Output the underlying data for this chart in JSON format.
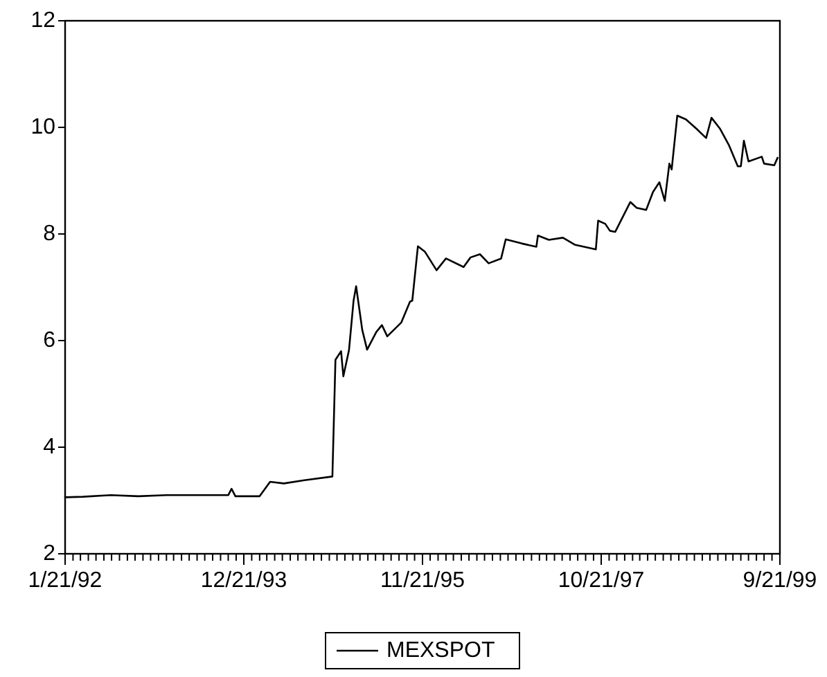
{
  "chart_data": {
    "type": "line",
    "xlim": [
      "1992-01-21",
      "1999-09-21"
    ],
    "ylim": [
      2,
      12
    ],
    "yticks": [
      2,
      4,
      6,
      8,
      10,
      12
    ],
    "grid": false,
    "legend": "bottom",
    "marker": "none",
    "line_style": "solid",
    "xticks": [
      {
        "value": "1992-01-21",
        "label": "1/21/92"
      },
      {
        "value": "1992-02-21",
        "label": null
      },
      {
        "value": "1992-03-21",
        "label": null
      },
      {
        "value": "1992-04-21",
        "label": null
      },
      {
        "value": "1992-05-21",
        "label": null
      },
      {
        "value": "1992-06-21",
        "label": null
      },
      {
        "value": "1992-07-21",
        "label": null
      },
      {
        "value": "1992-08-21",
        "label": null
      },
      {
        "value": "1992-09-21",
        "label": null
      },
      {
        "value": "1992-10-21",
        "label": null
      },
      {
        "value": "1992-11-21",
        "label": null
      },
      {
        "value": "1992-12-21",
        "label": null
      },
      {
        "value": "1993-01-21",
        "label": null
      },
      {
        "value": "1993-02-21",
        "label": null
      },
      {
        "value": "1993-03-21",
        "label": null
      },
      {
        "value": "1993-04-21",
        "label": null
      },
      {
        "value": "1993-05-21",
        "label": null
      },
      {
        "value": "1993-06-21",
        "label": null
      },
      {
        "value": "1993-07-21",
        "label": null
      },
      {
        "value": "1993-08-21",
        "label": null
      },
      {
        "value": "1993-09-21",
        "label": null
      },
      {
        "value": "1993-10-21",
        "label": null
      },
      {
        "value": "1993-11-21",
        "label": null
      },
      {
        "value": "1993-12-21",
        "label": "12/21/93"
      },
      {
        "value": "1994-01-21",
        "label": null
      },
      {
        "value": "1994-02-21",
        "label": null
      },
      {
        "value": "1994-03-21",
        "label": null
      },
      {
        "value": "1994-04-21",
        "label": null
      },
      {
        "value": "1994-05-21",
        "label": null
      },
      {
        "value": "1994-06-21",
        "label": null
      },
      {
        "value": "1994-07-21",
        "label": null
      },
      {
        "value": "1994-08-21",
        "label": null
      },
      {
        "value": "1994-09-21",
        "label": null
      },
      {
        "value": "1994-10-21",
        "label": null
      },
      {
        "value": "1994-11-21",
        "label": null
      },
      {
        "value": "1994-12-21",
        "label": null
      },
      {
        "value": "1995-01-21",
        "label": null
      },
      {
        "value": "1995-02-21",
        "label": null
      },
      {
        "value": "1995-03-21",
        "label": null
      },
      {
        "value": "1995-04-21",
        "label": null
      },
      {
        "value": "1995-05-21",
        "label": null
      },
      {
        "value": "1995-06-21",
        "label": null
      },
      {
        "value": "1995-07-21",
        "label": null
      },
      {
        "value": "1995-08-21",
        "label": null
      },
      {
        "value": "1995-09-21",
        "label": null
      },
      {
        "value": "1995-10-21",
        "label": null
      },
      {
        "value": "1995-11-21",
        "label": "11/21/95"
      },
      {
        "value": "1995-12-21",
        "label": null
      },
      {
        "value": "1996-01-21",
        "label": null
      },
      {
        "value": "1996-02-21",
        "label": null
      },
      {
        "value": "1996-03-21",
        "label": null
      },
      {
        "value": "1996-04-21",
        "label": null
      },
      {
        "value": "1996-05-21",
        "label": null
      },
      {
        "value": "1996-06-21",
        "label": null
      },
      {
        "value": "1996-07-21",
        "label": null
      },
      {
        "value": "1996-08-21",
        "label": null
      },
      {
        "value": "1996-09-21",
        "label": null
      },
      {
        "value": "1996-10-21",
        "label": null
      },
      {
        "value": "1996-11-21",
        "label": null
      },
      {
        "value": "1996-12-21",
        "label": null
      },
      {
        "value": "1997-01-21",
        "label": null
      },
      {
        "value": "1997-02-21",
        "label": null
      },
      {
        "value": "1997-03-21",
        "label": null
      },
      {
        "value": "1997-04-21",
        "label": null
      },
      {
        "value": "1997-05-21",
        "label": null
      },
      {
        "value": "1997-06-21",
        "label": null
      },
      {
        "value": "1997-07-21",
        "label": null
      },
      {
        "value": "1997-08-21",
        "label": null
      },
      {
        "value": "1997-09-21",
        "label": null
      },
      {
        "value": "1997-10-21",
        "label": "10/21/97"
      },
      {
        "value": "1997-11-21",
        "label": null
      },
      {
        "value": "1997-12-21",
        "label": null
      },
      {
        "value": "1998-01-21",
        "label": null
      },
      {
        "value": "1998-02-21",
        "label": null
      },
      {
        "value": "1998-03-21",
        "label": null
      },
      {
        "value": "1998-04-21",
        "label": null
      },
      {
        "value": "1998-05-21",
        "label": null
      },
      {
        "value": "1998-06-21",
        "label": null
      },
      {
        "value": "1998-07-21",
        "label": null
      },
      {
        "value": "1998-08-21",
        "label": null
      },
      {
        "value": "1998-09-21",
        "label": null
      },
      {
        "value": "1998-10-21",
        "label": null
      },
      {
        "value": "1998-11-21",
        "label": null
      },
      {
        "value": "1998-12-21",
        "label": null
      },
      {
        "value": "1999-01-21",
        "label": null
      },
      {
        "value": "1999-02-21",
        "label": null
      },
      {
        "value": "1999-03-21",
        "label": null
      },
      {
        "value": "1999-04-21",
        "label": null
      },
      {
        "value": "1999-05-21",
        "label": null
      },
      {
        "value": "1999-06-21",
        "label": null
      },
      {
        "value": "1999-07-21",
        "label": null
      },
      {
        "value": "1999-08-21",
        "label": null
      },
      {
        "value": "1999-09-21",
        "label": "9/21/99"
      }
    ],
    "x": [
      "1992-01-21",
      "1992-03-30",
      "1992-07-18",
      "1992-11-03",
      "1993-02-21",
      "1993-06-08",
      "1993-10-21",
      "1993-11-03",
      "1993-11-18",
      "1994-02-21",
      "1994-04-03",
      "1994-05-27",
      "1994-08-15",
      "1994-12-03",
      "1994-12-15",
      "1995-01-06",
      "1995-01-15",
      "1995-02-06",
      "1995-02-24",
      "1995-03-06",
      "1995-03-30",
      "1995-04-18",
      "1995-05-24",
      "1995-06-15",
      "1995-07-06",
      "1995-08-30",
      "1995-10-03",
      "1995-10-12",
      "1995-11-03",
      "1995-11-30",
      "1996-01-15",
      "1996-02-21",
      "1996-04-30",
      "1996-05-27",
      "1996-07-03",
      "1996-08-06",
      "1996-09-24",
      "1996-10-12",
      "1996-12-15",
      "1997-02-09",
      "1997-02-15",
      "1997-03-30",
      "1997-05-24",
      "1997-07-09",
      "1997-09-30",
      "1997-10-09",
      "1997-11-06",
      "1997-11-24",
      "1997-12-15",
      "1998-02-12",
      "1998-03-09",
      "1998-04-15",
      "1998-05-12",
      "1998-06-06",
      "1998-06-27",
      "1998-07-15",
      "1998-07-24",
      "1998-08-15",
      "1998-09-18",
      "1998-10-30",
      "1998-12-06",
      "1998-12-27",
      "1999-01-30",
      "1999-03-06",
      "1999-04-09",
      "1999-04-21",
      "1999-05-03",
      "1999-05-21",
      "1999-07-12",
      "1999-07-21",
      "1999-08-30",
      "1999-09-12"
    ],
    "series": [
      {
        "name": "MEXSPOT",
        "color": "#000000",
        "values": [
          3.06,
          3.07,
          3.1,
          3.08,
          3.1,
          3.1,
          3.1,
          3.22,
          3.08,
          3.08,
          3.35,
          3.32,
          3.38,
          3.45,
          5.64,
          5.8,
          5.33,
          5.82,
          6.75,
          7.02,
          6.2,
          5.83,
          6.16,
          6.29,
          6.08,
          6.34,
          6.73,
          6.75,
          7.77,
          7.67,
          7.32,
          7.54,
          7.38,
          7.56,
          7.62,
          7.45,
          7.54,
          7.9,
          7.82,
          7.76,
          7.97,
          7.89,
          7.93,
          7.8,
          7.71,
          8.25,
          8.19,
          8.06,
          8.04,
          8.6,
          8.49,
          8.45,
          8.79,
          8.97,
          8.62,
          9.32,
          9.21,
          10.22,
          10.15,
          9.97,
          9.8,
          10.18,
          9.97,
          9.66,
          9.27,
          9.27,
          9.75,
          9.36,
          9.45,
          9.32,
          9.29,
          9.43
        ]
      }
    ]
  }
}
